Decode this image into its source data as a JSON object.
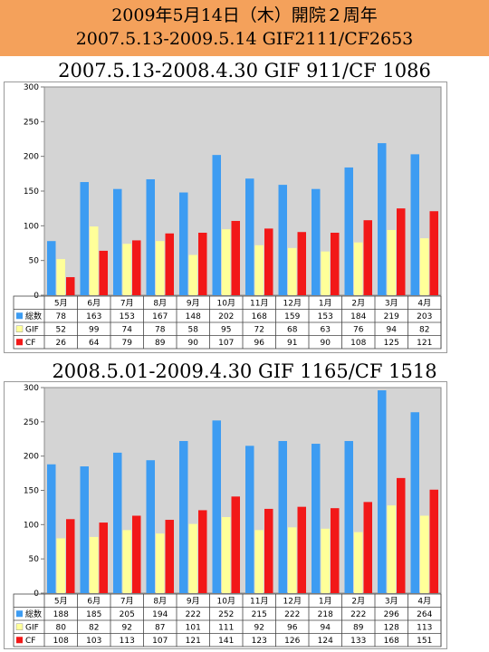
{
  "header": {
    "line1": "2009年5月14日（木）開院２周年",
    "line2": "2007.5.13-2009.5.14 GIF2111/CF2653"
  },
  "colors": {
    "banner": "#f4a15b",
    "plot_bg": "#d4d4d4",
    "total": "#3d9cf2",
    "gif": "#ffff99",
    "cf": "#f21818"
  },
  "chart_data": [
    {
      "type": "bar",
      "title": "2007.5.13-2008.4.30 GIF 911/CF 1086",
      "categories": [
        "5月",
        "6月",
        "7月",
        "8月",
        "9月",
        "10月",
        "11月",
        "12月",
        "1月",
        "2月",
        "3月",
        "4月"
      ],
      "ylim": [
        0,
        300
      ],
      "yticks": [
        "0",
        "50",
        "100",
        "150",
        "200",
        "250",
        "300"
      ],
      "grid": false,
      "legend": "table-below",
      "series": [
        {
          "name": "総数",
          "values": [
            78,
            163,
            153,
            167,
            148,
            202,
            168,
            159,
            153,
            184,
            219,
            203
          ]
        },
        {
          "name": "GIF",
          "values": [
            52,
            99,
            74,
            78,
            58,
            95,
            72,
            68,
            63,
            76,
            94,
            82
          ]
        },
        {
          "name": "CF",
          "values": [
            26,
            64,
            79,
            89,
            90,
            107,
            96,
            91,
            90,
            108,
            125,
            121
          ]
        }
      ]
    },
    {
      "type": "bar",
      "title": "2008.5.01-2009.4.30 GIF 1165/CF 1518",
      "categories": [
        "5月",
        "6月",
        "7月",
        "8月",
        "9月",
        "10月",
        "11月",
        "12月",
        "1月",
        "2月",
        "3月",
        "4月"
      ],
      "ylim": [
        0,
        300
      ],
      "yticks": [
        "0",
        "50",
        "100",
        "150",
        "200",
        "250",
        "300"
      ],
      "grid": false,
      "legend": "table-below",
      "series": [
        {
          "name": "総数",
          "values": [
            188,
            185,
            205,
            194,
            222,
            252,
            215,
            222,
            218,
            222,
            296,
            264
          ]
        },
        {
          "name": "GIF",
          "values": [
            80,
            82,
            92,
            87,
            101,
            111,
            92,
            96,
            94,
            89,
            128,
            113
          ]
        },
        {
          "name": "CF",
          "values": [
            108,
            103,
            113,
            107,
            121,
            141,
            123,
            126,
            124,
            133,
            168,
            151
          ]
        }
      ]
    }
  ]
}
